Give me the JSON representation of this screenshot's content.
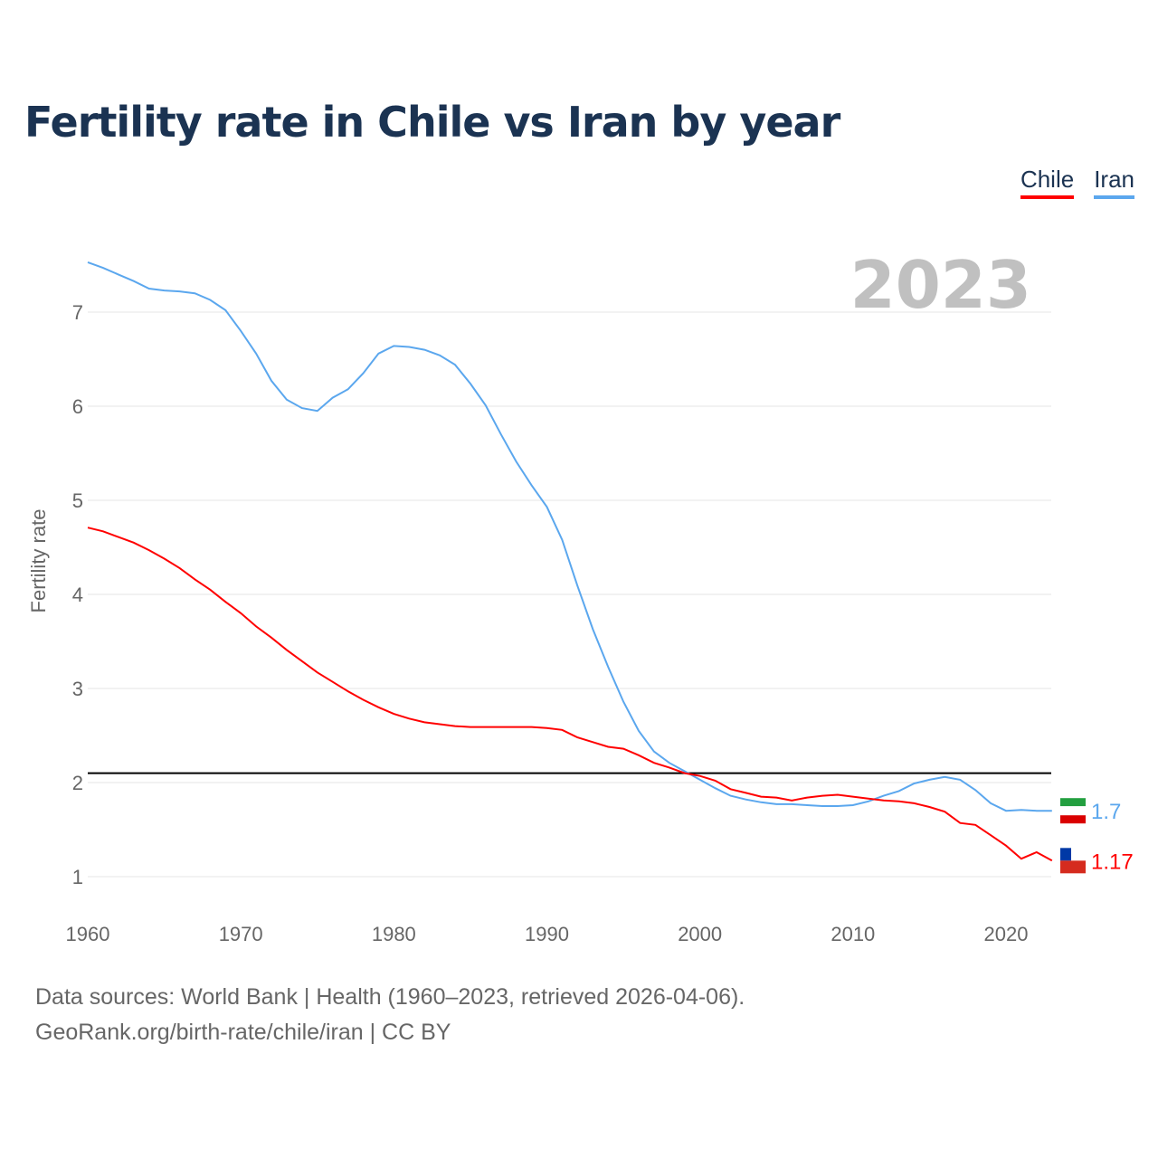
{
  "title": "Fertility rate in Chile vs Iran by year",
  "legend": [
    {
      "label": "Chile",
      "color": "#ff0000"
    },
    {
      "label": "Iran",
      "color": "#5ba7ee"
    }
  ],
  "year_label": "2023",
  "footer": {
    "line1": "Data sources: World Bank | Health (1960–2023, retrieved 2026-04-06).",
    "line2": "GeoRank.org/birth-rate/chile/iran | CC BY"
  },
  "chart_data": {
    "type": "line",
    "title": "Fertility rate in Chile vs Iran by year",
    "xlabel": "",
    "ylabel": "Fertility rate",
    "xlim": [
      1960,
      2023
    ],
    "ylim": [
      0.6,
      7.7
    ],
    "xticks": [
      1960,
      1970,
      1980,
      1990,
      2000,
      2010,
      2020
    ],
    "yticks": [
      1,
      2,
      3,
      4,
      5,
      6,
      7
    ],
    "reference_line": {
      "value": 2.1,
      "color": "#000000"
    },
    "x_start": 1960,
    "series": [
      {
        "name": "Chile",
        "color": "#ff0000",
        "end_label": "1.17",
        "values": [
          4.71,
          4.67,
          4.61,
          4.55,
          4.47,
          4.38,
          4.28,
          4.16,
          4.05,
          3.92,
          3.8,
          3.66,
          3.54,
          3.41,
          3.29,
          3.17,
          3.07,
          2.97,
          2.88,
          2.8,
          2.73,
          2.68,
          2.64,
          2.62,
          2.6,
          2.59,
          2.59,
          2.59,
          2.59,
          2.59,
          2.58,
          2.56,
          2.48,
          2.43,
          2.38,
          2.36,
          2.29,
          2.21,
          2.16,
          2.1,
          2.07,
          2.02,
          1.93,
          1.89,
          1.85,
          1.84,
          1.81,
          1.84,
          1.86,
          1.87,
          1.85,
          1.83,
          1.81,
          1.8,
          1.78,
          1.74,
          1.69,
          1.57,
          1.55,
          1.44,
          1.33,
          1.19,
          1.26,
          1.17
        ]
      },
      {
        "name": "Iran",
        "color": "#5ba7ee",
        "end_label": "1.7",
        "values": [
          7.53,
          7.47,
          7.4,
          7.33,
          7.25,
          7.23,
          7.22,
          7.2,
          7.13,
          7.02,
          6.8,
          6.56,
          6.27,
          6.07,
          5.98,
          5.95,
          6.09,
          6.18,
          6.35,
          6.56,
          6.64,
          6.63,
          6.6,
          6.54,
          6.44,
          6.24,
          6.01,
          5.7,
          5.41,
          5.16,
          4.93,
          4.58,
          4.09,
          3.63,
          3.23,
          2.86,
          2.55,
          2.33,
          2.21,
          2.12,
          2.03,
          1.94,
          1.86,
          1.82,
          1.79,
          1.77,
          1.77,
          1.76,
          1.75,
          1.75,
          1.76,
          1.8,
          1.86,
          1.91,
          1.99,
          2.03,
          2.06,
          2.03,
          1.92,
          1.78,
          1.7,
          1.71,
          1.7,
          1.7
        ]
      }
    ]
  }
}
